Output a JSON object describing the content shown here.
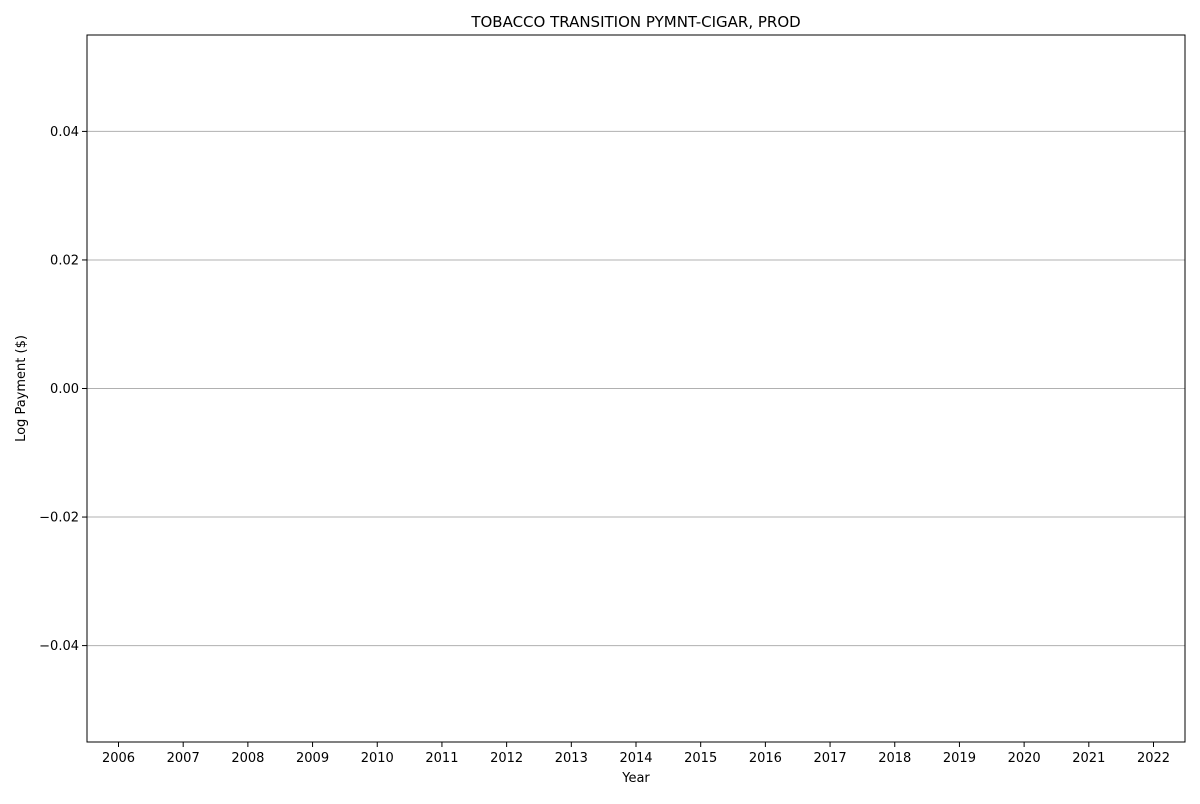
{
  "chart_data": {
    "type": "line",
    "title": "TOBACCO TRANSITION PYMNT-CIGAR, PROD",
    "xlabel": "Year",
    "ylabel": "Log Payment ($)",
    "categories": [
      "2006",
      "2007",
      "2008",
      "2009",
      "2010",
      "2011",
      "2012",
      "2013",
      "2014",
      "2015",
      "2016",
      "2017",
      "2018",
      "2019",
      "2020",
      "2021",
      "2022"
    ],
    "series": [],
    "ylim": [
      -0.055,
      0.055
    ],
    "yticks": [
      -0.04,
      -0.02,
      0.0,
      0.02,
      0.04
    ],
    "ytick_labels": [
      "−0.04",
      "−0.02",
      "0.00",
      "0.02",
      "0.04"
    ],
    "grid": "horizontal",
    "colors": {
      "grid": "#b0b0b0",
      "axis": "#000000",
      "background": "#ffffff"
    }
  }
}
